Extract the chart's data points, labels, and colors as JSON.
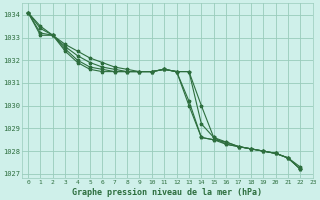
{
  "title": "Graphe pression niveau de la mer (hPa)",
  "background_color": "#cff0ea",
  "grid_color": "#99ccbb",
  "line_color": "#2d6e3e",
  "xlim": [
    -0.5,
    23
  ],
  "ylim": [
    1026.8,
    1034.5
  ],
  "yticks": [
    1027,
    1028,
    1029,
    1030,
    1031,
    1032,
    1033,
    1034
  ],
  "xticks": [
    0,
    1,
    2,
    3,
    4,
    5,
    6,
    7,
    8,
    9,
    10,
    11,
    12,
    13,
    14,
    15,
    16,
    17,
    18,
    19,
    20,
    21,
    22,
    23
  ],
  "series": [
    [
      1034.1,
      1033.5,
      1033.1,
      1032.7,
      1032.4,
      1032.1,
      1031.9,
      1031.7,
      1031.6,
      1031.5,
      1031.5,
      1031.6,
      1031.5,
      1030.0,
      1028.6,
      1028.5,
      1028.4,
      1028.2,
      1028.1,
      1028.0,
      1027.9,
      1027.7,
      1027.2
    ],
    [
      1034.1,
      1033.4,
      1033.1,
      1032.6,
      1032.2,
      1031.9,
      1031.7,
      1031.6,
      1031.5,
      1031.5,
      1031.5,
      1031.6,
      1031.5,
      1030.2,
      1028.6,
      1028.5,
      1028.3,
      1028.2,
      1028.1,
      1028.0,
      1027.9,
      1027.7,
      1027.3
    ],
    [
      1034.1,
      1033.2,
      1033.1,
      1032.5,
      1032.0,
      1031.7,
      1031.6,
      1031.5,
      1031.5,
      1031.5,
      1031.5,
      1031.6,
      1031.5,
      1031.5,
      1030.0,
      1028.6,
      1028.4,
      1028.2,
      1028.1,
      1028.0,
      1027.9,
      1027.7,
      1027.2
    ],
    [
      1034.1,
      1033.1,
      1033.1,
      1032.4,
      1031.9,
      1031.6,
      1031.5,
      1031.5,
      1031.5,
      1031.5,
      1031.5,
      1031.6,
      1031.5,
      1031.5,
      1029.2,
      1028.6,
      1028.3,
      1028.2,
      1028.1,
      1028.0,
      1027.9,
      1027.7,
      1027.2
    ]
  ],
  "title_fontsize": 6.0,
  "tick_fontsize": 5.0
}
